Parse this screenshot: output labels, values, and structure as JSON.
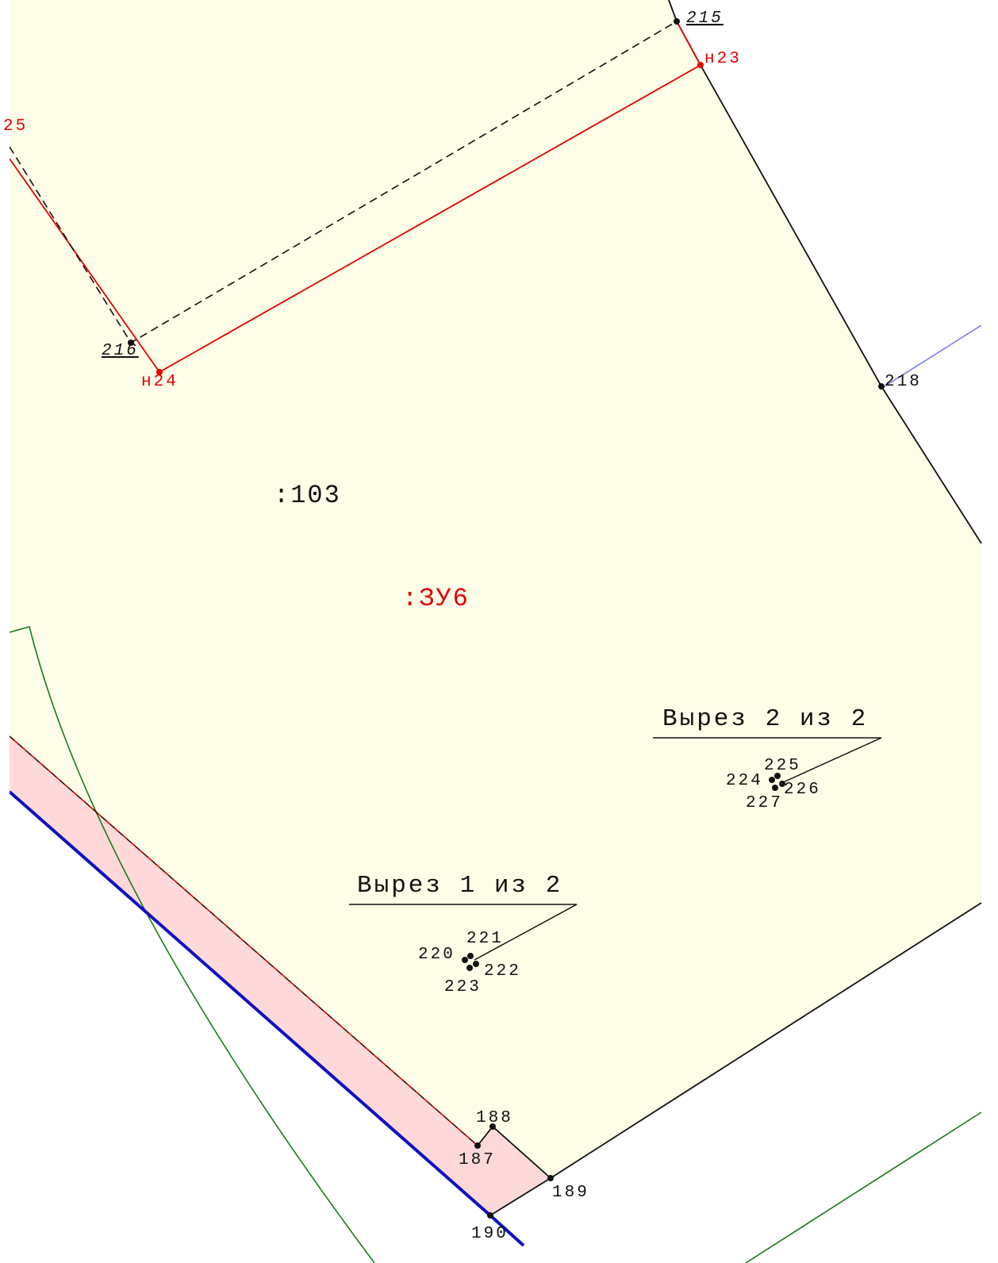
{
  "parcels": {
    "existing": ":103",
    "new": ":ЗУ6"
  },
  "points": {
    "p215": "215",
    "p216": "216",
    "p218": "218",
    "p187": "187",
    "p188": "188",
    "p189": "189",
    "p190": "190"
  },
  "new_points": {
    "n23": "н23",
    "n24": "н24",
    "n25": "25"
  },
  "cutouts": [
    {
      "title": "Вырез 1 из 2",
      "points": [
        "220",
        "221",
        "222",
        "223"
      ]
    },
    {
      "title": "Вырез 2 из 2",
      "points": [
        "224",
        "225",
        "226",
        "227"
      ]
    }
  ]
}
